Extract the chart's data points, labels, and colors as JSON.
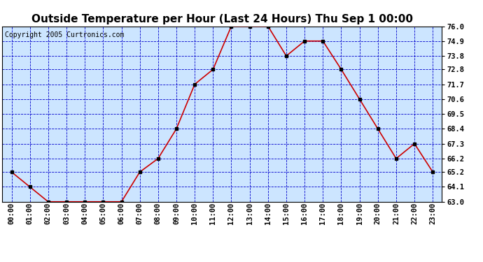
{
  "title": "Outside Temperature per Hour (Last 24 Hours) Thu Sep 1 00:00",
  "copyright": "Copyright 2005 Curtronics.com",
  "x_labels": [
    "00:00",
    "01:00",
    "02:00",
    "03:00",
    "04:00",
    "05:00",
    "06:00",
    "07:00",
    "08:00",
    "09:00",
    "10:00",
    "11:00",
    "12:00",
    "13:00",
    "14:00",
    "15:00",
    "16:00",
    "17:00",
    "18:00",
    "19:00",
    "20:00",
    "21:00",
    "22:00",
    "23:00"
  ],
  "y_values": [
    65.2,
    64.1,
    63.0,
    63.0,
    63.0,
    63.0,
    63.0,
    65.2,
    66.2,
    68.4,
    71.7,
    72.8,
    76.0,
    76.0,
    76.0,
    73.8,
    74.9,
    74.9,
    72.8,
    70.6,
    68.4,
    66.2,
    67.3,
    65.2
  ],
  "ylim": [
    63.0,
    76.0
  ],
  "yticks": [
    63.0,
    64.1,
    65.2,
    66.2,
    67.3,
    68.4,
    69.5,
    70.6,
    71.7,
    72.8,
    73.8,
    74.9,
    76.0
  ],
  "line_color": "#cc0000",
  "marker_color": "#000000",
  "plot_bg_color": "#cce5ff",
  "grid_color": "#0000cc",
  "title_fontsize": 11,
  "copyright_fontsize": 7,
  "tick_fontsize": 7.5,
  "figure_bg": "#ffffff"
}
